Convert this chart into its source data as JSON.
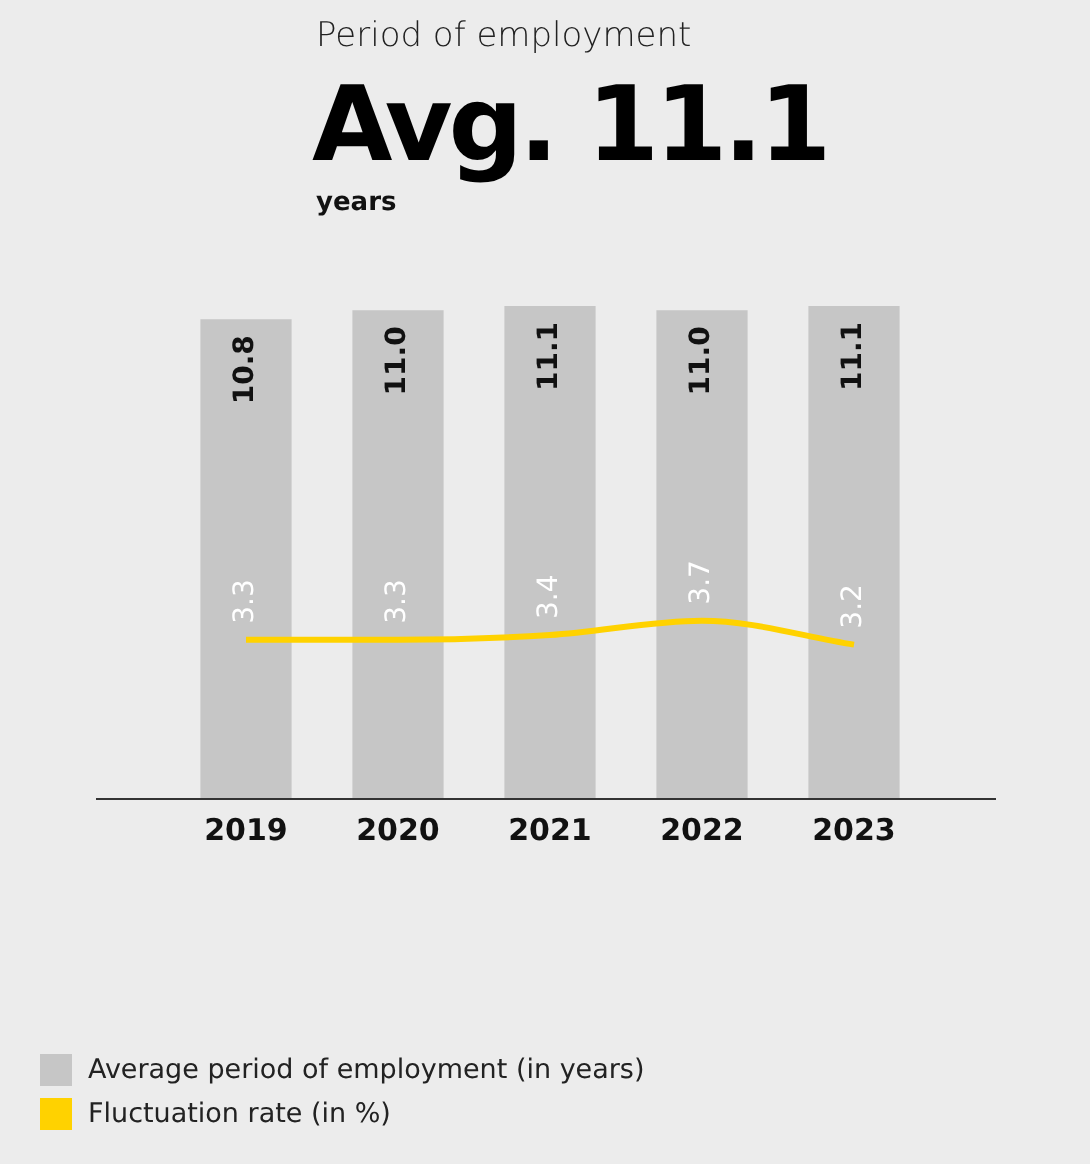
{
  "chart_data": {
    "type": "bar",
    "title": "Period of employment",
    "subtitle": "Avg. 11.1",
    "annotations": [
      "years"
    ],
    "categories": [
      "2019",
      "2020",
      "2021",
      "2022",
      "2023"
    ],
    "series": [
      {
        "name": "Average period of employment (in years)",
        "color": "#c6c6c6",
        "values": [
          10.8,
          11.0,
          11.1,
          11.0,
          11.1
        ],
        "value_labels": [
          "10.8",
          "11.0",
          "11.1",
          "11.0",
          "11.1"
        ]
      },
      {
        "name": "Fluctuation rate (in %)",
        "type": "line",
        "axis": "y2",
        "color": "#ffd200",
        "values": [
          3.3,
          3.3,
          3.4,
          3.7,
          3.2
        ],
        "value_labels": [
          "3.3",
          "3.3",
          "3.4",
          "3.7",
          "3.2"
        ]
      }
    ],
    "legend": "bottom left",
    "tick_labels": "x",
    "marker": "none"
  }
}
